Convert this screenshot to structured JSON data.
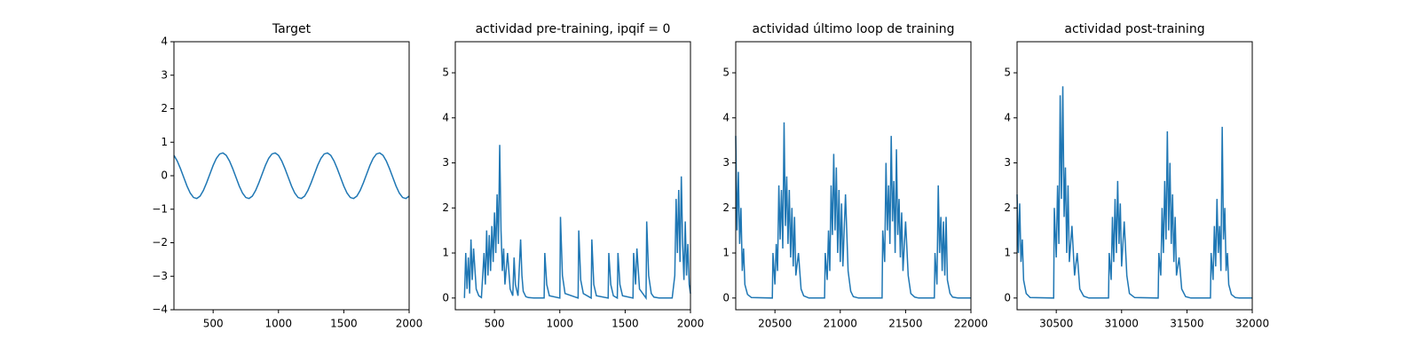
{
  "chart_data": [
    {
      "type": "line",
      "title": "Target",
      "color": "#1f77b4",
      "x": [
        200,
        225,
        250,
        275,
        300,
        325,
        350,
        375,
        400,
        425,
        450,
        475,
        500,
        525,
        550,
        575,
        600,
        625,
        650,
        675,
        700,
        725,
        750,
        775,
        800,
        825,
        850,
        875,
        900,
        925,
        950,
        975,
        1000,
        1025,
        1050,
        1075,
        1100,
        1125,
        1150,
        1175,
        1200,
        1225,
        1250,
        1275,
        1300,
        1325,
        1350,
        1375,
        1400,
        1425,
        1450,
        1475,
        1500,
        1525,
        1550,
        1575,
        1600,
        1625,
        1650,
        1675,
        1700,
        1725,
        1750,
        1775,
        1800,
        1825,
        1850,
        1875,
        1900,
        1925,
        1950,
        1975,
        2000
      ],
      "values": [
        0.61,
        0.44,
        0.21,
        -0.05,
        -0.31,
        -0.52,
        -0.65,
        -0.68,
        -0.61,
        -0.44,
        -0.21,
        0.05,
        0.31,
        0.52,
        0.65,
        0.68,
        0.61,
        0.44,
        0.21,
        -0.05,
        -0.31,
        -0.52,
        -0.65,
        -0.68,
        -0.61,
        -0.44,
        -0.21,
        0.05,
        0.31,
        0.52,
        0.65,
        0.68,
        0.61,
        0.44,
        0.21,
        -0.05,
        -0.31,
        -0.52,
        -0.65,
        -0.68,
        -0.61,
        -0.44,
        -0.21,
        0.05,
        0.31,
        0.52,
        0.65,
        0.68,
        0.61,
        0.44,
        0.21,
        -0.05,
        -0.31,
        -0.52,
        -0.65,
        -0.68,
        -0.61,
        -0.44,
        -0.21,
        0.05,
        0.31,
        0.52,
        0.65,
        0.68,
        0.61,
        0.44,
        0.21,
        -0.05,
        -0.31,
        -0.52,
        -0.65,
        -0.68,
        -0.61
      ],
      "xlim": [
        200,
        2000
      ],
      "xticks": [
        500,
        1000,
        1500,
        2000
      ],
      "ylim": [
        -4,
        4
      ],
      "yticks": [
        {
          "value": -4,
          "label": "−4"
        },
        {
          "value": -3,
          "label": "−3"
        },
        {
          "value": -2,
          "label": "−2"
        },
        {
          "value": -1,
          "label": "−1"
        },
        0,
        1,
        2,
        3,
        4
      ]
    },
    {
      "type": "line",
      "title": "actividad pre-training, ipqif = 0",
      "color": "#1f77b4",
      "x": [
        270,
        280,
        290,
        300,
        310,
        320,
        330,
        340,
        360,
        380,
        400,
        420,
        430,
        440,
        450,
        460,
        470,
        480,
        490,
        500,
        510,
        520,
        530,
        540,
        550,
        560,
        570,
        580,
        600,
        620,
        640,
        650,
        660,
        680,
        700,
        710,
        720,
        740,
        760,
        800,
        880,
        885,
        900,
        920,
        1000,
        1005,
        1020,
        1040,
        1140,
        1145,
        1160,
        1180,
        1240,
        1245,
        1260,
        1280,
        1370,
        1375,
        1390,
        1410,
        1440,
        1445,
        1460,
        1480,
        1560,
        1565,
        1580,
        1590,
        1610,
        1660,
        1665,
        1680,
        1700,
        1720,
        1760,
        1800,
        1860,
        1880,
        1890,
        1900,
        1910,
        1920,
        1930,
        1940,
        1950,
        1960,
        1970,
        1980,
        1990,
        2000
      ],
      "values": [
        0,
        1.0,
        0.2,
        0.9,
        0.1,
        1.3,
        0.4,
        1.1,
        0.2,
        0.05,
        0.01,
        1.0,
        0.3,
        1.5,
        0.5,
        1.4,
        0.6,
        1.6,
        0.8,
        1.9,
        1.0,
        2.3,
        1.2,
        3.4,
        1.5,
        0.6,
        1.1,
        0.3,
        1.0,
        0.2,
        0.05,
        0.9,
        0.3,
        0.05,
        1.3,
        0.5,
        0.15,
        0.03,
        0.01,
        0,
        0,
        1.0,
        0.3,
        0.05,
        0,
        1.8,
        0.5,
        0.1,
        0,
        1.5,
        0.4,
        0.1,
        0,
        1.3,
        0.3,
        0.05,
        0,
        1.0,
        0.3,
        0.05,
        0,
        1.0,
        0.3,
        0.05,
        0,
        1.0,
        0.3,
        1.1,
        0.2,
        0,
        1.7,
        0.5,
        0.1,
        0.02,
        0,
        0,
        0,
        0.5,
        2.2,
        1.0,
        2.4,
        0.8,
        2.7,
        1.2,
        0.4,
        1.7,
        0.5,
        1.2,
        0.3,
        0.1
      ],
      "xlim": [
        200,
        2000
      ],
      "xticks": [
        500,
        1000,
        1500,
        2000
      ],
      "ylim": [
        -0.26,
        5.69
      ],
      "yticks": [
        0,
        1,
        2,
        3,
        4,
        5
      ]
    },
    {
      "type": "line",
      "title": "actividad último loop de training",
      "color": "#1f77b4",
      "x": [
        20200,
        20210,
        20220,
        20230,
        20240,
        20250,
        20260,
        20270,
        20290,
        20320,
        20480,
        20485,
        20500,
        20510,
        20520,
        20530,
        20540,
        20550,
        20560,
        20570,
        20580,
        20590,
        20600,
        20610,
        20620,
        20630,
        20640,
        20650,
        20660,
        20680,
        20700,
        20720,
        20760,
        20880,
        20885,
        20900,
        20910,
        20920,
        20930,
        20940,
        20950,
        20960,
        20970,
        20980,
        20990,
        21000,
        21010,
        21020,
        21040,
        21060,
        21080,
        21100,
        21140,
        21320,
        21325,
        21340,
        21350,
        21360,
        21370,
        21380,
        21390,
        21400,
        21410,
        21420,
        21430,
        21440,
        21450,
        21460,
        21470,
        21480,
        21500,
        21520,
        21540,
        21570,
        21600,
        21720,
        21725,
        21740,
        21750,
        21760,
        21770,
        21780,
        21790,
        21800,
        21810,
        21820,
        21840,
        21860,
        21900,
        22000
      ],
      "values": [
        3.6,
        1.5,
        2.8,
        1.2,
        2.0,
        0.6,
        1.1,
        0.3,
        0.08,
        0.01,
        0,
        1.0,
        0.3,
        1.2,
        0.6,
        2.5,
        1.3,
        2.4,
        1.1,
        3.9,
        1.6,
        2.7,
        1.2,
        2.4,
        0.9,
        2.0,
        0.7,
        1.8,
        0.5,
        1.0,
        0.2,
        0.05,
        0,
        0,
        1.0,
        0.4,
        1.5,
        0.6,
        2.5,
        1.4,
        3.2,
        1.5,
        2.9,
        1.0,
        2.4,
        0.8,
        2.1,
        0.7,
        2.3,
        0.6,
        0.15,
        0.03,
        0,
        0,
        1.5,
        0.8,
        3.0,
        1.5,
        2.5,
        1.2,
        3.6,
        1.7,
        2.6,
        1.0,
        3.3,
        1.4,
        2.2,
        0.9,
        1.9,
        0.6,
        1.7,
        0.5,
        0.1,
        0.02,
        0,
        0,
        1.0,
        0.3,
        2.5,
        1.0,
        1.8,
        0.6,
        1.7,
        0.5,
        1.8,
        0.4,
        0.1,
        0.02,
        0,
        0
      ],
      "xlim": [
        20200,
        22000
      ],
      "xticks": [
        20500,
        21000,
        21500,
        22000
      ],
      "ylim": [
        -0.26,
        5.69
      ],
      "yticks": [
        0,
        1,
        2,
        3,
        4,
        5
      ]
    },
    {
      "type": "line",
      "title": "actividad post-training",
      "color": "#1f77b4",
      "x": [
        30200,
        30210,
        30220,
        30230,
        30240,
        30250,
        30270,
        30300,
        30480,
        30485,
        30500,
        30510,
        30520,
        30530,
        30540,
        30550,
        30560,
        30570,
        30580,
        30590,
        30600,
        30620,
        30640,
        30660,
        30680,
        30710,
        30750,
        30900,
        30905,
        30920,
        30930,
        30940,
        30950,
        30960,
        30970,
        30980,
        30990,
        31000,
        31020,
        31040,
        31060,
        31100,
        31280,
        31285,
        31300,
        31310,
        31320,
        31330,
        31340,
        31350,
        31360,
        31370,
        31380,
        31390,
        31400,
        31410,
        31420,
        31440,
        31460,
        31490,
        31530,
        31680,
        31685,
        31700,
        31710,
        31720,
        31730,
        31740,
        31750,
        31760,
        31770,
        31780,
        31790,
        31800,
        31810,
        31820,
        31840,
        31870,
        31900,
        32000
      ],
      "values": [
        2.3,
        1.0,
        2.1,
        0.8,
        1.3,
        0.4,
        0.1,
        0.01,
        0,
        2.0,
        0.9,
        2.5,
        1.2,
        4.5,
        2.2,
        4.7,
        1.8,
        2.9,
        1.0,
        2.5,
        0.8,
        1.6,
        0.5,
        1.0,
        0.2,
        0.04,
        0,
        0,
        1.0,
        0.4,
        1.8,
        0.8,
        2.2,
        1.0,
        2.6,
        1.2,
        2.1,
        0.7,
        1.7,
        0.5,
        0.1,
        0.01,
        0,
        1.0,
        0.5,
        2.0,
        1.0,
        2.6,
        1.3,
        3.7,
        1.5,
        3.0,
        1.2,
        2.3,
        0.8,
        1.8,
        0.5,
        0.9,
        0.2,
        0.03,
        0,
        0,
        1.0,
        0.4,
        1.6,
        0.7,
        2.2,
        1.0,
        1.6,
        0.6,
        3.8,
        1.3,
        2.0,
        0.6,
        1.0,
        0.3,
        0.08,
        0.01,
        0,
        0
      ],
      "xlim": [
        30200,
        32000
      ],
      "xticks": [
        30500,
        31000,
        31500,
        32000
      ],
      "ylim": [
        -0.26,
        5.69
      ],
      "yticks": [
        0,
        1,
        2,
        3,
        4,
        5
      ]
    }
  ]
}
